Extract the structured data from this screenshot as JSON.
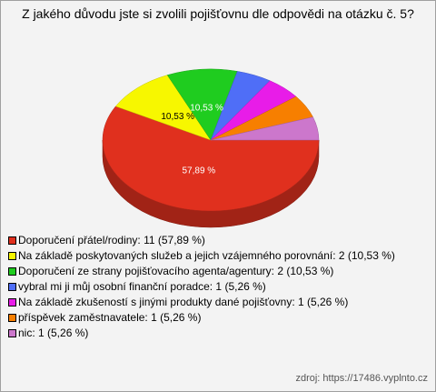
{
  "chart_data": {
    "type": "pie3d",
    "title": "Z jakého důvodu jste si zvolili pojišťovnu dle odpovědi na otázku č. 5?",
    "categories": [
      "Doporučení přátel/rodiny: 11 (57,89 %)",
      "Na základě poskytovaných služeb a jejich vzájemného porovnání: 2 (10,53 %)",
      "Doporučení ze strany pojišťovacího agenta/agentury: 2 (10,53 %)",
      "vybral mi ji můj osobní finanční poradce: 1 (5,26 %)",
      "Na základě zkušeností s jinými produkty dané pojišťovny: 1 (5,26 %)",
      "příspěvek zaměstnavatele: 1 (5,26 %)",
      "nic: 1 (5,26 %)"
    ],
    "values": [
      57.89,
      10.53,
      10.53,
      5.26,
      5.26,
      5.26,
      5.26
    ],
    "value_labels": [
      "57,89 %",
      "10,53 %",
      "10,53 %",
      null,
      null,
      null,
      null
    ],
    "colors": [
      "#e0301e",
      "#f7f700",
      "#1fcc1f",
      "#4f6ef7",
      "#e81ce8",
      "#f77f00",
      "#cc77cc"
    ],
    "source": "zdroj: https://17486.vyplnto.cz"
  }
}
